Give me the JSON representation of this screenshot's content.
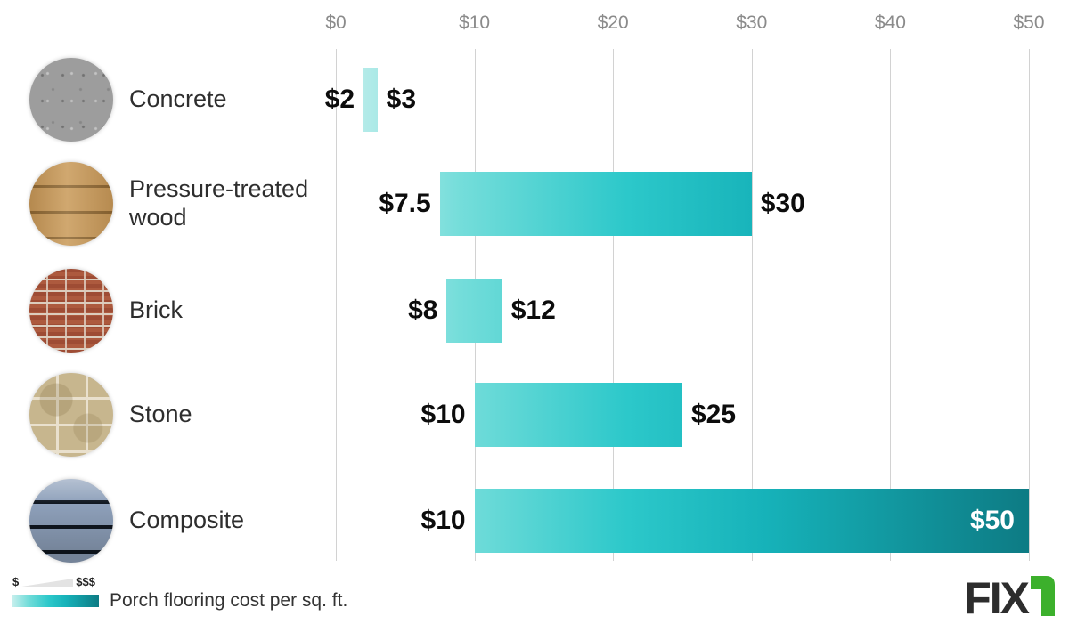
{
  "chart_data": {
    "type": "bar",
    "orientation": "horizontal-range",
    "title": "Porch flooring cost per sq. ft.",
    "x_axis": {
      "min": 0,
      "max": 50,
      "ticks": [
        "$0",
        "$10",
        "$20",
        "$30",
        "$40",
        "$50"
      ]
    },
    "categories": [
      "Concrete",
      "Pressure-treated wood",
      "Brick",
      "Stone",
      "Composite"
    ],
    "series": [
      {
        "material": "Concrete",
        "swatch": "concrete",
        "low": 2,
        "high": 3,
        "low_label": "$2",
        "high_label": "$3",
        "high_label_placement": "outside"
      },
      {
        "material": "Pressure-treated wood",
        "swatch": "wood",
        "low": 7.5,
        "high": 30,
        "low_label": "$7.5",
        "high_label": "$30",
        "high_label_placement": "outside"
      },
      {
        "material": "Brick",
        "swatch": "brick",
        "low": 8,
        "high": 12,
        "low_label": "$8",
        "high_label": "$12",
        "high_label_placement": "outside"
      },
      {
        "material": "Stone",
        "swatch": "stone",
        "low": 10,
        "high": 25,
        "low_label": "$10",
        "high_label": "$25",
        "high_label_placement": "outside"
      },
      {
        "material": "Composite",
        "swatch": "composite",
        "low": 10,
        "high": 50,
        "low_label": "$10",
        "high_label": "$50",
        "high_label_placement": "inside"
      }
    ],
    "legend": {
      "low_symbol": "$",
      "high_symbol": "$$$",
      "caption": "Porch flooring cost per sq. ft."
    },
    "gradient_stops": [
      {
        "color": "#c6efed",
        "pos": 0
      },
      {
        "color": "#74ddda",
        "pos": 18
      },
      {
        "color": "#2cc8ca",
        "pos": 42
      },
      {
        "color": "#16b2b9",
        "pos": 62
      },
      {
        "color": "#0d7b84",
        "pos": 100
      }
    ],
    "gridline_color": "#d2d2d2",
    "tick_color": "#8b8b8b"
  },
  "logo": {
    "text": "FIX",
    "mark": "r-mark",
    "text_color": "#2d2d2d",
    "mark_color": "#3cb02c"
  }
}
